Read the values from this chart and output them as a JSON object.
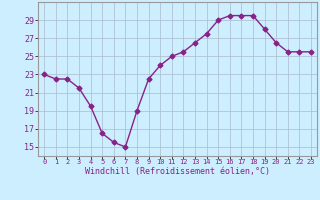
{
  "x": [
    0,
    1,
    2,
    3,
    4,
    5,
    6,
    7,
    8,
    9,
    10,
    11,
    12,
    13,
    14,
    15,
    16,
    17,
    18,
    19,
    20,
    21,
    22,
    23
  ],
  "y": [
    23,
    22.5,
    22.5,
    21.5,
    19.5,
    16.5,
    15.5,
    15,
    19,
    22.5,
    24,
    25,
    25.5,
    26.5,
    27.5,
    29,
    29.5,
    29.5,
    29.5,
    28,
    26.5,
    25.5,
    25.5,
    25.5
  ],
  "line_color": "#882288",
  "marker": "D",
  "marker_size": 2.5,
  "bg_color": "#cceeff",
  "grid_color": "#aabbcc",
  "xlabel": "Windchill (Refroidissement éolien,°C)",
  "xlabel_color": "#882288",
  "tick_color": "#882288",
  "ylim": [
    14,
    31
  ],
  "xlim": [
    -0.5,
    23.5
  ],
  "yticks": [
    15,
    17,
    19,
    21,
    23,
    25,
    27,
    29
  ],
  "xticks": [
    0,
    1,
    2,
    3,
    4,
    5,
    6,
    7,
    8,
    9,
    10,
    11,
    12,
    13,
    14,
    15,
    16,
    17,
    18,
    19,
    20,
    21,
    22,
    23
  ]
}
